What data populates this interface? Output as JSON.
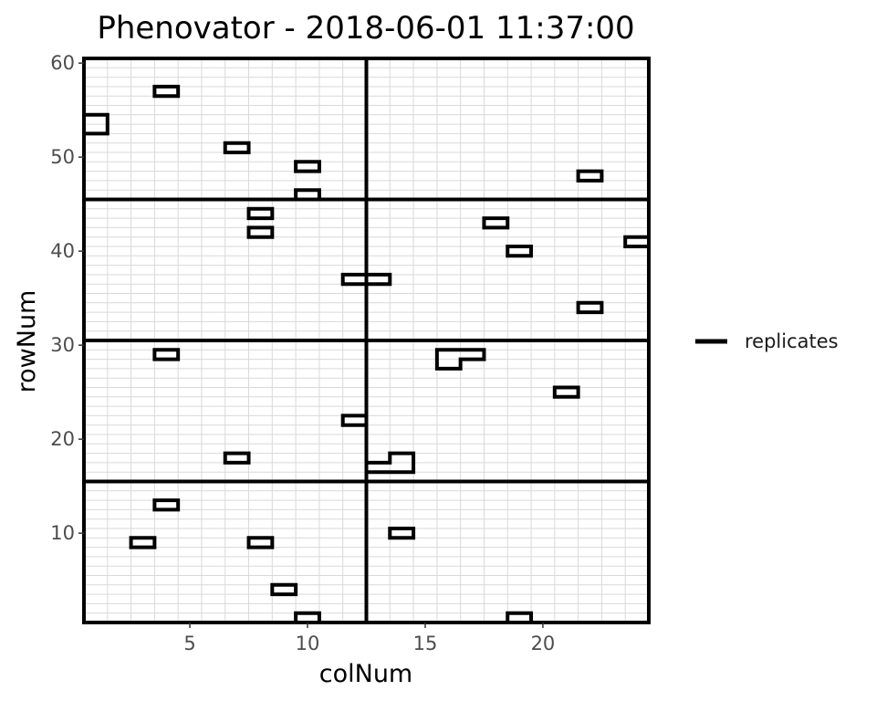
{
  "chart_data": {
    "type": "heatmap",
    "title": "Phenovator - 2018-06-01 11:37:00",
    "xlabel": "colNum",
    "ylabel": "rowNum",
    "xlim": [
      0.5,
      24.5
    ],
    "ylim": [
      0.5,
      60.5
    ],
    "x_ticks": [
      5,
      10,
      15,
      20
    ],
    "y_ticks": [
      10,
      20,
      30,
      40,
      50,
      60
    ],
    "x_tick_labels": [
      "5",
      "10",
      "15",
      "20"
    ],
    "y_tick_labels": [
      "10",
      "20",
      "30",
      "40",
      "50",
      "60"
    ],
    "grid": true,
    "legend": {
      "position": "right",
      "entries": [
        {
          "label": "replicates",
          "color": "#000000"
        }
      ]
    },
    "block_boundaries": {
      "vertical": [
        0.5,
        12.5,
        24.5
      ],
      "horizontal": [
        0.5,
        15.5,
        30.5,
        45.5,
        60.5
      ]
    },
    "replicate_cells": [
      [
        4,
        57
      ],
      [
        7,
        51
      ],
      [
        10,
        49
      ],
      [
        22,
        48
      ],
      [
        10,
        46
      ],
      [
        8,
        44
      ],
      [
        8,
        42
      ],
      [
        18,
        43
      ],
      [
        19,
        40
      ],
      [
        12,
        37
      ],
      [
        13,
        37
      ],
      [
        22,
        34
      ],
      [
        4,
        29
      ],
      [
        16,
        29
      ],
      [
        17,
        29
      ],
      [
        16,
        28
      ],
      [
        21,
        25
      ],
      [
        12,
        22
      ],
      [
        7,
        18
      ],
      [
        13,
        17
      ],
      [
        14,
        17
      ],
      [
        14,
        18
      ],
      [
        4,
        13
      ],
      [
        14,
        10
      ],
      [
        3,
        9
      ],
      [
        8,
        9
      ],
      [
        9,
        4
      ],
      [
        10,
        1
      ],
      [
        19,
        1
      ],
      [
        1,
        54
      ],
      [
        1,
        53
      ],
      [
        24,
        41
      ]
    ],
    "colors": {
      "outline": "#000000",
      "grid": "#d9d9d9",
      "background": "#ffffff"
    }
  }
}
